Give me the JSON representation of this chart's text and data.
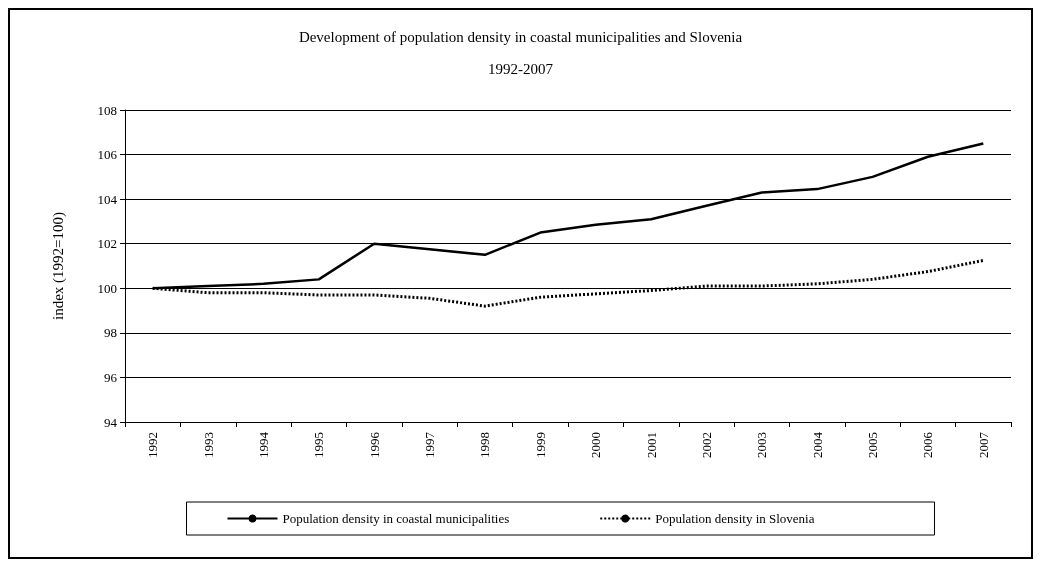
{
  "chart_data": {
    "type": "line",
    "title": "Development of population density in coastal municipalities and Slovenia",
    "subtitle": "1992-2007",
    "ylabel": "index (1992=100)",
    "categories": [
      "1992",
      "1993",
      "1994",
      "1995",
      "1996",
      "1997",
      "1998",
      "1999",
      "2000",
      "2001",
      "2002",
      "2003",
      "2004",
      "2005",
      "2006",
      "2007"
    ],
    "series": [
      {
        "name": "Population density in coastal municipalities",
        "color": "#000000",
        "line_style": "solid",
        "values": [
          100,
          100.1,
          100.2,
          100.4,
          102.0,
          101.75,
          101.5,
          102.5,
          102.85,
          103.1,
          103.7,
          104.3,
          104.45,
          105.0,
          105.9,
          106.5
        ]
      },
      {
        "name": "Population density in Slovenia",
        "color": "#000000",
        "line_style": "dotted",
        "values": [
          100,
          99.8,
          99.8,
          99.7,
          99.7,
          99.55,
          99.2,
          99.6,
          99.75,
          99.9,
          100.1,
          100.1,
          100.2,
          100.4,
          100.75,
          101.25
        ]
      }
    ],
    "ylim": [
      94,
      108
    ],
    "yticks": [
      94,
      96,
      98,
      100,
      102,
      104,
      106,
      108
    ],
    "grid": "y",
    "legend": "bottom",
    "marker": "none"
  }
}
